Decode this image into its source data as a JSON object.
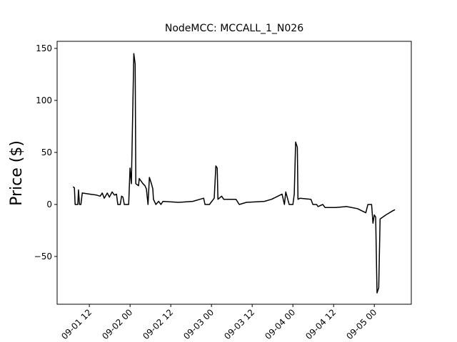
{
  "chart_data": {
    "type": "line",
    "title": "NodeMCC: MCCALL_1_N026",
    "y_label": "Price ($)",
    "x": [
      7.2,
      7.6,
      7.8,
      8.6,
      8.8,
      9.1,
      9.5,
      9.9,
      12,
      14.1,
      15.2,
      15.8,
      16.4,
      17.3,
      17.9,
      18.7,
      19.4,
      20.0,
      20.4,
      21.1,
      21.5,
      21.9,
      22.3,
      23.6,
      24.0,
      24.4,
      25.1,
      25.5,
      25.7,
      26.5,
      26.7,
      27.8,
      28.4,
      28.8,
      29.3,
      29.7,
      30.3,
      30.7,
      30.9,
      31.6,
      32.4,
      33.1,
      33.7,
      38.3,
      42.5,
      44.6,
      45.7,
      46.1,
      47.4,
      48.8,
      49.3,
      49.7,
      49.9,
      51.0,
      51.6,
      55.2,
      56.2,
      58.3,
      63.6,
      65.7,
      68.8,
      69.5,
      69.9,
      70.9,
      72.0,
      72.4,
      72.8,
      73.3,
      73.5,
      74.1,
      77.3,
      77.9,
      79.0,
      79.4,
      80.8,
      81.5,
      84.6,
      87.8,
      91.0,
      93.5,
      94.1,
      95.2,
      95.6,
      96.0,
      96.4,
      96.8,
      97.3,
      97.7,
      99.4,
      101.5,
      102.1
    ],
    "series": [
      {
        "color": "#000000",
        "values": [
          17,
          16,
          0,
          0,
          14,
          0,
          0,
          11,
          10,
          9,
          8,
          11,
          6,
          11,
          7,
          12,
          9,
          10,
          0,
          0,
          8,
          7,
          0,
          0,
          35,
          20,
          145,
          135,
          20,
          18,
          25,
          20,
          18,
          15,
          0,
          26,
          20,
          15,
          5,
          0,
          3,
          0,
          3,
          2,
          3,
          5,
          6,
          0,
          0,
          6,
          37,
          35,
          5,
          8,
          5,
          5,
          0,
          2,
          3,
          5,
          10,
          0,
          12,
          0,
          0,
          10,
          60,
          55,
          5,
          6,
          5,
          0,
          0,
          -2,
          0,
          -3,
          -3,
          -2,
          -4,
          -8,
          0,
          0,
          -18,
          -10,
          -12,
          -85,
          -80,
          -14,
          -10,
          -6,
          -5
        ]
      }
    ],
    "xlim": [
      2.5,
      106.9
    ],
    "xticks": [
      {
        "value": 12,
        "label": "09-01 12"
      },
      {
        "value": 24,
        "label": "09-02 00"
      },
      {
        "value": 36,
        "label": "09-02 12"
      },
      {
        "value": 48,
        "label": "09-03 00"
      },
      {
        "value": 60,
        "label": "09-03 12"
      },
      {
        "value": 72,
        "label": "09-04 00"
      },
      {
        "value": 84,
        "label": "09-04 12"
      },
      {
        "value": 96,
        "label": "09-05 00"
      }
    ],
    "ylim": [
      -95.9,
      156.8
    ],
    "yticks": [
      {
        "value": -50,
        "label": "−50"
      },
      0,
      50,
      100,
      150
    ]
  }
}
